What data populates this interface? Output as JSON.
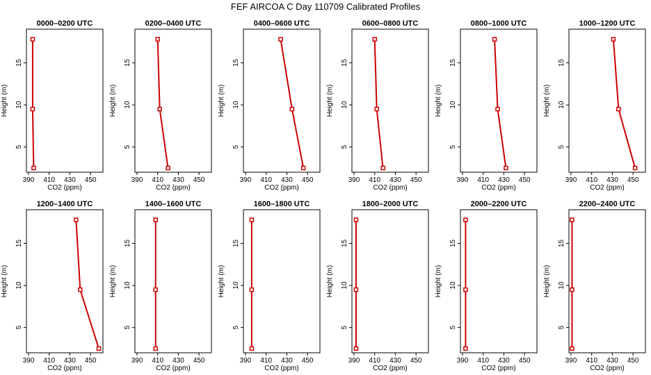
{
  "chart_data": {
    "title": "FEF AIRCOA C  Day 110709  Calibrated Profiles",
    "type": "line",
    "xlabel": "CO2 (ppm)",
    "ylabel": "Height (m)",
    "xlim": [
      388,
      462
    ],
    "ylim": [
      2,
      19
    ],
    "xticks": [
      390,
      410,
      430,
      450
    ],
    "yticks": [
      5,
      10,
      15
    ],
    "heights": [
      2.5,
      9.5,
      17.8
    ],
    "line_color": "#cc0000",
    "panels": [
      {
        "title": "0000–0200 UTC",
        "co2": [
          395,
          394,
          394
        ]
      },
      {
        "title": "0200–0400 UTC",
        "co2": [
          420,
          412,
          410
        ]
      },
      {
        "title": "0400–0600 UTC",
        "co2": [
          446,
          435,
          424
        ]
      },
      {
        "title": "0600–0800 UTC",
        "co2": [
          418,
          412,
          410
        ]
      },
      {
        "title": "0800–1000 UTC",
        "co2": [
          432,
          424,
          421
        ]
      },
      {
        "title": "1000–1200 UTC",
        "co2": [
          452,
          436,
          431
        ]
      },
      {
        "title": "1200–1400 UTC",
        "co2": [
          458,
          440,
          436
        ]
      },
      {
        "title": "1400–1600 UTC",
        "co2": [
          408,
          408,
          408
        ]
      },
      {
        "title": "1600–1800 UTC",
        "co2": [
          396,
          396,
          396
        ]
      },
      {
        "title": "1800–2000 UTC",
        "co2": [
          392,
          392,
          392
        ]
      },
      {
        "title": "2000–2200 UTC",
        "co2": [
          393,
          393,
          393
        ]
      },
      {
        "title": "2200–2400 UTC",
        "co2": [
          391,
          391,
          391
        ]
      }
    ]
  }
}
